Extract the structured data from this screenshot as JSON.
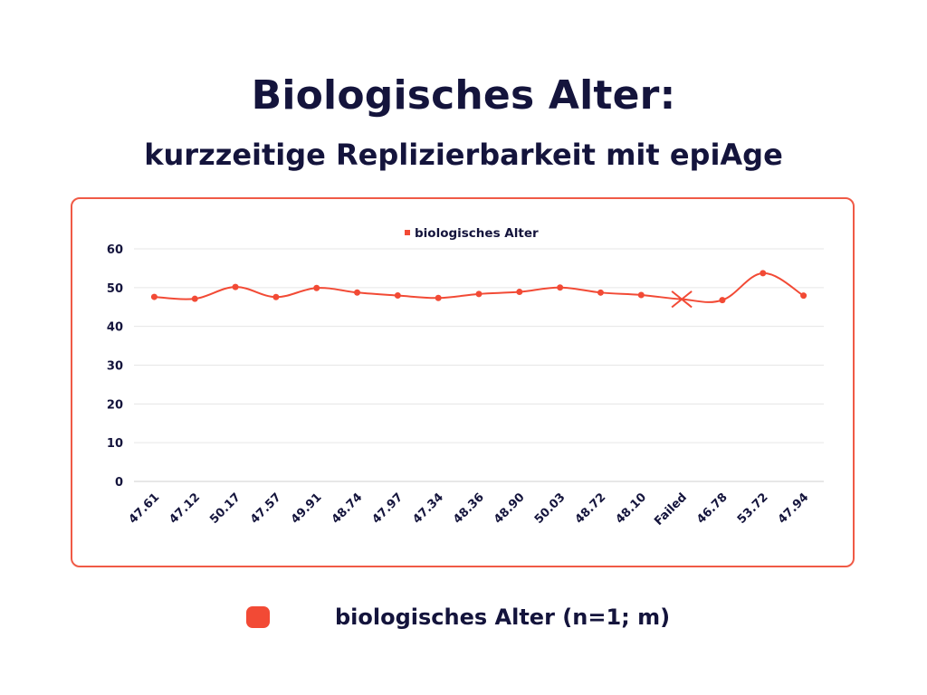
{
  "title": "Biologisches Alter:",
  "subtitle": "kurzzeitige Replizierbarkeit mit epiAge",
  "colors": {
    "series": "#f24a35",
    "text": "#14143c",
    "frame": "#f05a46",
    "grid": "#e6e6e6"
  },
  "chart_data": {
    "type": "line",
    "title": "",
    "legend": {
      "label": "biologisches Alter",
      "position": "top-center"
    },
    "categories": [
      "47.61",
      "47.12",
      "50.17",
      "47.57",
      "49.91",
      "48.74",
      "47.97",
      "47.34",
      "48.36",
      "48.90",
      "50.03",
      "48.72",
      "48.10",
      "Failed",
      "46.78",
      "53.72",
      "47.94"
    ],
    "series": [
      {
        "name": "biologisches Alter",
        "values": [
          47.61,
          47.12,
          50.17,
          47.57,
          49.91,
          48.74,
          47.97,
          47.34,
          48.36,
          48.9,
          50.03,
          48.72,
          48.1,
          47.0,
          46.78,
          53.72,
          47.94
        ],
        "failed_index": 13
      }
    ],
    "xlabel": "",
    "ylabel": "",
    "ylim": [
      0,
      60
    ],
    "yticks": [
      "0",
      "10",
      "20",
      "30",
      "40",
      "50",
      "60"
    ],
    "grid": true,
    "smooth": true
  },
  "bottom_legend": {
    "label": "biologisches Alter (n=1; m)"
  }
}
